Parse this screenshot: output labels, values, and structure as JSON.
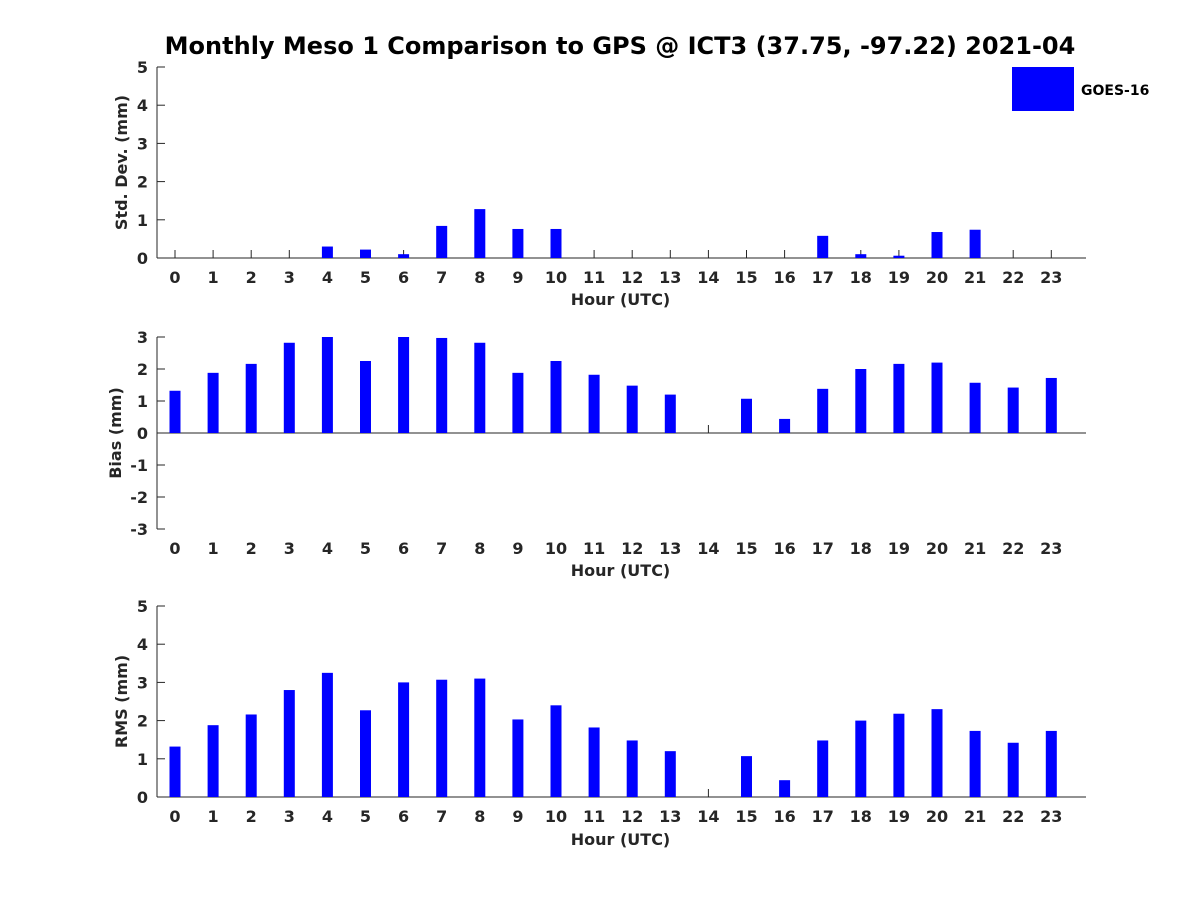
{
  "title": "Monthly Meso 1 Comparison to GPS @ ICT3 (37.75, -97.22) 2021-04",
  "legend": {
    "label": "GOES-16",
    "placement": "top-right",
    "color": "#0000ff"
  },
  "colors": {
    "bar": "#0000ff",
    "axis": "#262626",
    "text": "#262626"
  },
  "chart_data": [
    {
      "type": "bar",
      "xlabel": "Hour (UTC)",
      "ylabel": "Std. Dev. (mm)",
      "ylim": [
        0,
        5
      ],
      "yticks": [
        0,
        1,
        2,
        3,
        4,
        5
      ],
      "grid": false,
      "categories": [
        "0",
        "1",
        "2",
        "3",
        "4",
        "5",
        "6",
        "7",
        "8",
        "9",
        "10",
        "11",
        "12",
        "13",
        "14",
        "15",
        "16",
        "17",
        "18",
        "19",
        "20",
        "21",
        "22",
        "23"
      ],
      "series": [
        {
          "name": "GOES-16",
          "values": [
            null,
            null,
            null,
            null,
            0.3,
            0.22,
            0.1,
            0.84,
            1.28,
            0.76,
            0.76,
            null,
            null,
            null,
            null,
            null,
            null,
            0.58,
            0.1,
            0.06,
            0.68,
            0.74,
            null,
            null
          ]
        }
      ]
    },
    {
      "type": "bar",
      "xlabel": "Hour (UTC)",
      "ylabel": "Bias (mm)",
      "ylim": [
        -3,
        3
      ],
      "yticks": [
        -3,
        -2,
        -1,
        0,
        1,
        2,
        3
      ],
      "grid": false,
      "categories": [
        "0",
        "1",
        "2",
        "3",
        "4",
        "5",
        "6",
        "7",
        "8",
        "9",
        "10",
        "11",
        "12",
        "13",
        "14",
        "15",
        "16",
        "17",
        "18",
        "19",
        "20",
        "21",
        "22",
        "23"
      ],
      "series": [
        {
          "name": "GOES-16",
          "values": [
            1.32,
            1.88,
            2.16,
            2.82,
            3.0,
            2.25,
            3.0,
            2.97,
            2.82,
            1.88,
            2.25,
            1.82,
            1.48,
            1.2,
            null,
            1.07,
            0.44,
            1.38,
            2.0,
            2.16,
            2.2,
            1.57,
            1.42,
            1.72
          ]
        }
      ]
    },
    {
      "type": "bar",
      "xlabel": "Hour (UTC)",
      "ylabel": "RMS (mm)",
      "ylim": [
        0,
        5
      ],
      "yticks": [
        0,
        1,
        2,
        3,
        4,
        5
      ],
      "grid": false,
      "categories": [
        "0",
        "1",
        "2",
        "3",
        "4",
        "5",
        "6",
        "7",
        "8",
        "9",
        "10",
        "11",
        "12",
        "13",
        "14",
        "15",
        "16",
        "17",
        "18",
        "19",
        "20",
        "21",
        "22",
        "23"
      ],
      "series": [
        {
          "name": "GOES-16",
          "values": [
            1.32,
            1.88,
            2.16,
            2.8,
            3.25,
            2.27,
            3.0,
            3.07,
            3.1,
            2.03,
            2.4,
            1.82,
            1.48,
            1.2,
            null,
            1.07,
            0.44,
            1.48,
            2.0,
            2.18,
            2.3,
            1.73,
            1.42,
            1.73
          ]
        }
      ]
    }
  ]
}
